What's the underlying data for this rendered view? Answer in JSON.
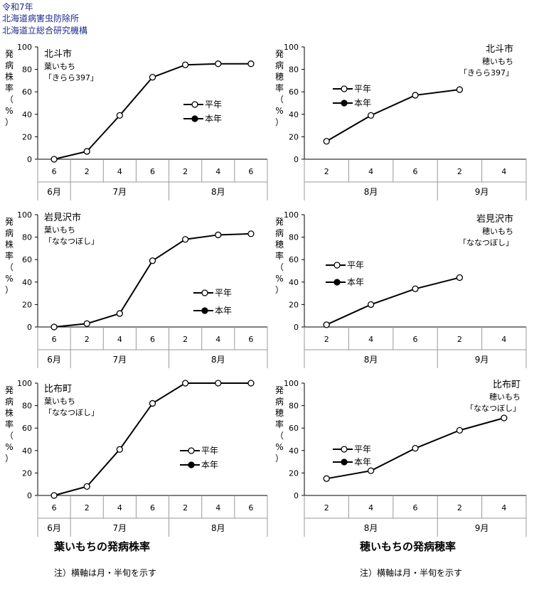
{
  "header": {
    "line1": "令和7年",
    "line2": "北海道病害虫防除所",
    "line3": "北海道立総合研究機構"
  },
  "captions": {
    "left": "葉いもちの発病株率",
    "right": "穂いもちの発病穂率",
    "note_left": "注）横軸は月・半旬を示す",
    "note_right": "注）横軸は月・半旬を示す"
  },
  "chart_data": [
    {
      "type": "line",
      "location": "北斗市",
      "kind": "葉いもち",
      "variety": "「きらら397」",
      "ylabel": "発病株率（%）",
      "ylim": [
        0,
        100
      ],
      "yticks": [
        0,
        20,
        40,
        60,
        80,
        100
      ],
      "x_ticks": [
        "6",
        "2",
        "4",
        "6",
        "2",
        "4",
        "6"
      ],
      "months": [
        {
          "label": "6月",
          "span": 1
        },
        {
          "label": "7月",
          "span": 3
        },
        {
          "label": "8月",
          "span": 3
        }
      ],
      "series": [
        {
          "name": "平年",
          "marker": "open",
          "values": [
            0,
            7,
            39,
            73,
            84,
            85,
            85
          ]
        },
        {
          "name": "本年",
          "marker": "filled",
          "values": []
        }
      ]
    },
    {
      "type": "line",
      "location": "北斗市",
      "kind": "穂いもち",
      "variety": "「きらら397」",
      "ylabel": "発病穂率（%）",
      "ylim": [
        0,
        100
      ],
      "yticks": [
        0,
        20,
        40,
        60,
        80,
        100
      ],
      "x_ticks": [
        "2",
        "4",
        "6",
        "2",
        "4"
      ],
      "months": [
        {
          "label": "8月",
          "span": 3
        },
        {
          "label": "9月",
          "span": 2
        }
      ],
      "series": [
        {
          "name": "平年",
          "marker": "open",
          "values": [
            16,
            39,
            57,
            62,
            null
          ]
        },
        {
          "name": "本年",
          "marker": "filled",
          "values": []
        }
      ]
    },
    {
      "type": "line",
      "location": "岩見沢市",
      "kind": "葉いもち",
      "variety": "「ななつぼし」",
      "ylabel": "発病株率（%）",
      "ylim": [
        0,
        100
      ],
      "yticks": [
        0,
        20,
        40,
        60,
        80,
        100
      ],
      "x_ticks": [
        "6",
        "2",
        "4",
        "6",
        "2",
        "4",
        "6"
      ],
      "months": [
        {
          "label": "6月",
          "span": 1
        },
        {
          "label": "7月",
          "span": 3
        },
        {
          "label": "8月",
          "span": 3
        }
      ],
      "series": [
        {
          "name": "平年",
          "marker": "open",
          "values": [
            0,
            3,
            12,
            59,
            78,
            82,
            83
          ]
        },
        {
          "name": "本年",
          "marker": "filled",
          "values": []
        }
      ]
    },
    {
      "type": "line",
      "location": "岩見沢市",
      "kind": "穂いもち",
      "variety": "「ななつぼし」",
      "ylabel": "発病穂率（%）",
      "ylim": [
        0,
        100
      ],
      "yticks": [
        0,
        20,
        40,
        60,
        80,
        100
      ],
      "x_ticks": [
        "2",
        "4",
        "6",
        "2",
        "4"
      ],
      "months": [
        {
          "label": "8月",
          "span": 3
        },
        {
          "label": "9月",
          "span": 2
        }
      ],
      "series": [
        {
          "name": "平年",
          "marker": "open",
          "values": [
            2,
            20,
            34,
            44,
            null
          ]
        },
        {
          "name": "本年",
          "marker": "filled",
          "values": []
        }
      ]
    },
    {
      "type": "line",
      "location": "比布町",
      "kind": "葉いもち",
      "variety": "「ななつぼし」",
      "ylabel": "発病株率（%）",
      "ylim": [
        0,
        100
      ],
      "yticks": [
        0,
        20,
        40,
        60,
        80,
        100
      ],
      "x_ticks": [
        "6",
        "2",
        "4",
        "6",
        "2",
        "4",
        "6"
      ],
      "months": [
        {
          "label": "6月",
          "span": 1
        },
        {
          "label": "7月",
          "span": 3
        },
        {
          "label": "8月",
          "span": 3
        }
      ],
      "series": [
        {
          "name": "平年",
          "marker": "open",
          "values": [
            0,
            8,
            41,
            82,
            100,
            100,
            100
          ]
        },
        {
          "name": "本年",
          "marker": "filled",
          "values": []
        }
      ]
    },
    {
      "type": "line",
      "location": "比布町",
      "kind": "穂いもち",
      "variety": "「ななつぼし」",
      "ylabel": "発病穂率（%）",
      "ylim": [
        0,
        100
      ],
      "yticks": [
        0,
        20,
        40,
        60,
        80,
        100
      ],
      "x_ticks": [
        "2",
        "4",
        "6",
        "2",
        "4"
      ],
      "months": [
        {
          "label": "8月",
          "span": 3
        },
        {
          "label": "9月",
          "span": 2
        }
      ],
      "series": [
        {
          "name": "平年",
          "marker": "open",
          "values": [
            15,
            22,
            42,
            58,
            69
          ]
        },
        {
          "name": "本年",
          "marker": "filled",
          "values": []
        }
      ]
    }
  ]
}
